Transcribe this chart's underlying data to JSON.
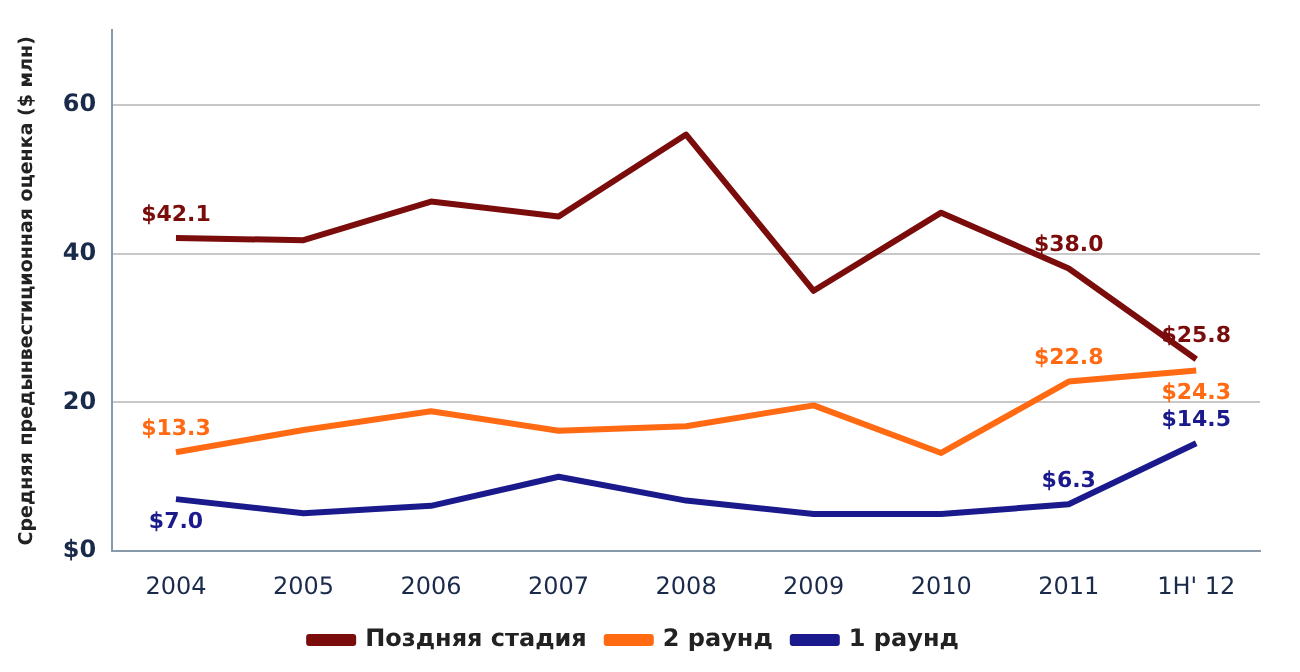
{
  "chart_data": {
    "type": "line",
    "ylabel": "Средняя предынвестиционная оценка ($ млн)",
    "categories": [
      "2004",
      "2005",
      "2006",
      "2007",
      "2008",
      "2009",
      "2010",
      "2011",
      "1H' 12"
    ],
    "series": [
      {
        "name": "Поздняя стадия",
        "color": "#7b0c0c",
        "values": [
          42.1,
          41.8,
          47,
          45,
          56,
          35,
          45.5,
          38.0,
          25.8
        ],
        "value_labels": [
          "$42.1",
          null,
          null,
          null,
          null,
          null,
          null,
          "$38.0",
          "$25.8"
        ]
      },
      {
        "name": "2 раунд",
        "color": "#ff6a13",
        "values": [
          13.3,
          16.3,
          18.8,
          16.2,
          16.8,
          19.6,
          13.2,
          22.8,
          24.3
        ],
        "value_labels": [
          "$13.3",
          null,
          null,
          null,
          null,
          null,
          null,
          "$22.8",
          "$24.3"
        ]
      },
      {
        "name": "1 раунд",
        "color": "#1a1a8c",
        "values": [
          7.0,
          5.1,
          6.1,
          10.0,
          6.8,
          5.0,
          5.0,
          6.3,
          14.5
        ],
        "value_labels": [
          "$7.0",
          null,
          null,
          null,
          null,
          null,
          null,
          "$6.3",
          "$14.5"
        ]
      }
    ],
    "ylim": [
      0,
      70
    ],
    "yticks": [
      {
        "value": 0,
        "label": "$0"
      },
      20,
      40,
      60
    ],
    "grid": "y",
    "legend": "bottom",
    "marker": "none",
    "line_style": "solid"
  }
}
